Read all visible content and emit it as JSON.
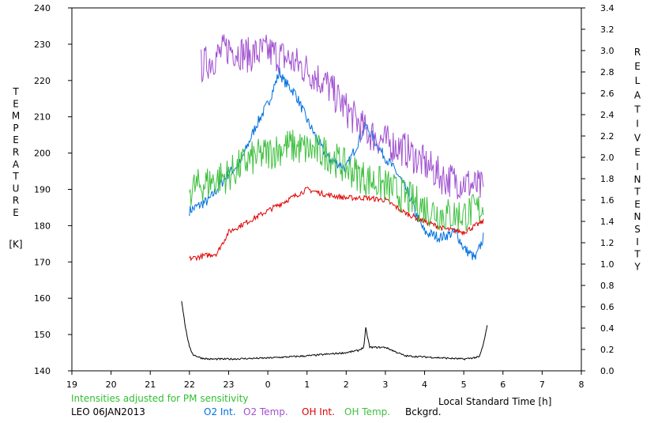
{
  "chart_data": {
    "type": "line",
    "xlabel": "Local Standard Time [h]",
    "ylabel_left_letters": [
      "T",
      "E",
      "M",
      "P",
      "E",
      "R",
      "A",
      "T",
      "U",
      "R",
      "E"
    ],
    "ylabel_left_unit": "[K]",
    "ylabel_right_word1": [
      "R",
      "E",
      "L",
      "A",
      "T",
      "I",
      "V",
      "E"
    ],
    "ylabel_right_word2": [
      "I",
      "N",
      "T",
      "E",
      "N",
      "S",
      "I",
      "T",
      "Y"
    ],
    "xlim": [
      19,
      32
    ],
    "ylim_left": [
      140,
      240
    ],
    "ylim_right": [
      0.0,
      3.4
    ],
    "x_ticks": [
      19,
      20,
      21,
      22,
      23,
      24,
      25,
      26,
      27,
      28,
      29,
      30,
      31,
      32
    ],
    "x_tick_labels": [
      "19",
      "20",
      "21",
      "22",
      "23",
      "0",
      "1",
      "2",
      "3",
      "4",
      "5",
      "6",
      "7",
      "8"
    ],
    "y_left_ticks": [
      "140",
      "150",
      "160",
      "170",
      "180",
      "190",
      "200",
      "210",
      "220",
      "230",
      "240"
    ],
    "y_right_ticks": [
      "0.0",
      "0.2",
      "0.4",
      "0.6",
      "0.8",
      "1.0",
      "1.2",
      "1.4",
      "1.6",
      "1.8",
      "2.0",
      "2.2",
      "2.4",
      "2.6",
      "2.8",
      "3.0",
      "3.2",
      "3.4"
    ],
    "note": "Intensities adjusted for PM sensitivity",
    "station": "LEO 06JAN2013",
    "series": [
      {
        "name": "O2 Int.",
        "axis": "right",
        "color": "#0070e0",
        "noise": 0.05,
        "x": [
          22.0,
          22.5,
          23.0,
          23.3,
          23.7,
          24.0,
          24.3,
          24.4,
          24.7,
          25.0,
          25.5,
          26.0,
          26.5,
          26.9,
          27.3,
          27.6,
          27.8,
          28.0,
          28.4,
          28.8,
          29.0,
          29.3,
          29.5
        ],
        "y": [
          1.5,
          1.6,
          1.85,
          1.95,
          2.3,
          2.5,
          2.8,
          2.72,
          2.6,
          2.35,
          2.0,
          1.9,
          2.3,
          2.05,
          1.85,
          1.65,
          1.45,
          1.3,
          1.25,
          1.3,
          1.15,
          1.05,
          1.25
        ]
      },
      {
        "name": "O2 Temp.",
        "axis": "left",
        "color": "#a050d0",
        "noise": 5,
        "x": [
          22.3,
          22.6,
          23.0,
          23.5,
          24.0,
          24.5,
          25.0,
          25.5,
          26.0,
          26.5,
          27.0,
          27.5,
          28.0,
          28.5,
          29.0,
          29.5
        ],
        "y": [
          224,
          226,
          229,
          227,
          228,
          226,
          223,
          219,
          212,
          206,
          203,
          201,
          197,
          193,
          192,
          190
        ]
      },
      {
        "name": "OH Int.",
        "axis": "right",
        "color": "#e00000",
        "noise": 0.025,
        "x": [
          22.0,
          22.7,
          23.0,
          23.5,
          24.0,
          24.5,
          25.0,
          25.5,
          26.0,
          26.5,
          27.0,
          27.5,
          28.0,
          28.5,
          29.0,
          29.5
        ],
        "y": [
          1.05,
          1.1,
          1.3,
          1.4,
          1.5,
          1.6,
          1.7,
          1.65,
          1.62,
          1.62,
          1.6,
          1.48,
          1.4,
          1.33,
          1.3,
          1.4
        ]
      },
      {
        "name": "OH Temp.",
        "axis": "left",
        "color": "#40c040",
        "noise": 5,
        "x": [
          22.0,
          22.5,
          23.0,
          23.5,
          24.0,
          24.5,
          25.0,
          25.5,
          26.0,
          26.5,
          27.0,
          27.5,
          28.0,
          28.5,
          29.0,
          29.5
        ],
        "y": [
          190,
          192,
          194,
          198,
          200,
          202,
          201,
          200,
          196,
          193,
          191,
          188,
          185,
          183,
          183,
          185
        ]
      },
      {
        "name": "Bckgrd.",
        "axis": "right",
        "color": "#000000",
        "noise": 0.008,
        "x": [
          21.8,
          21.9,
          22.0,
          22.1,
          22.3,
          22.5,
          23.0,
          24.0,
          25.0,
          26.0,
          26.3,
          26.45,
          26.5,
          26.6,
          27.0,
          27.5,
          28.0,
          29.0,
          29.4,
          29.5,
          29.6
        ],
        "y": [
          0.66,
          0.4,
          0.22,
          0.15,
          0.12,
          0.11,
          0.11,
          0.12,
          0.14,
          0.17,
          0.19,
          0.22,
          0.4,
          0.22,
          0.22,
          0.14,
          0.13,
          0.11,
          0.13,
          0.25,
          0.42
        ]
      }
    ]
  }
}
